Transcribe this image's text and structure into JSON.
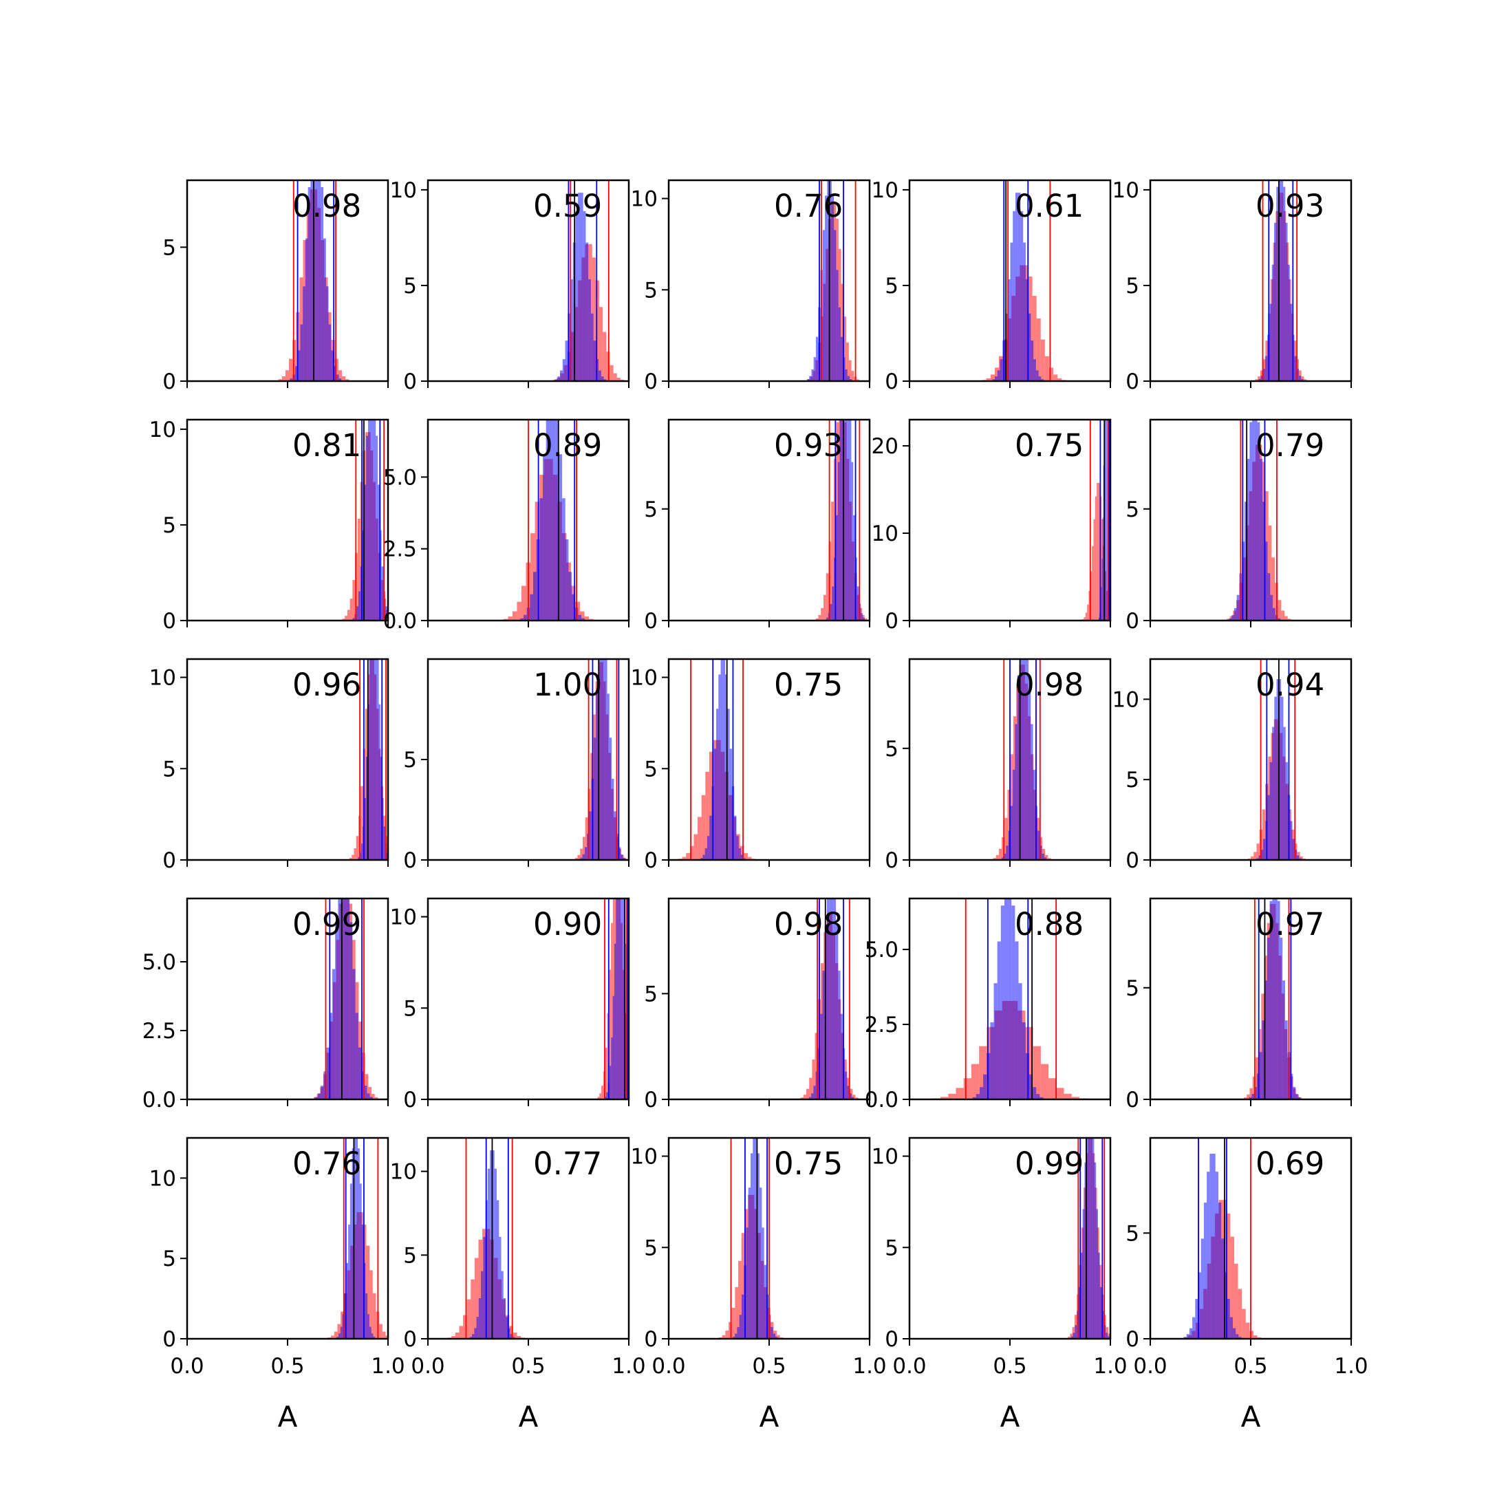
{
  "chart_data": {
    "type": "histogram-grid",
    "rows": 5,
    "cols": 5,
    "xlim": [
      0,
      1
    ],
    "xticks": [
      "0.0",
      "0.5",
      "1.0"
    ],
    "xlabel": "A",
    "colors": {
      "series_a": "#ff0000",
      "series_b": "#0000ff",
      "marker_line": "#000000",
      "axes": "#000000"
    },
    "panels": [
      {
        "label": "0.98",
        "ymax": 7.5,
        "yticks": [
          "0",
          "5"
        ],
        "a": {
          "mean": 0.63,
          "sd": 0.055
        },
        "b": {
          "mean": 0.64,
          "sd": 0.04
        },
        "a_lines": [
          0.53,
          0.74
        ],
        "b_lines": [
          0.55,
          0.73
        ],
        "marker": 0.63
      },
      {
        "label": "0.59",
        "ymax": 10.5,
        "yticks": [
          "0",
          "5",
          "10"
        ],
        "a": {
          "mean": 0.8,
          "sd": 0.055
        },
        "b": {
          "mean": 0.76,
          "sd": 0.04
        },
        "a_lines": [
          0.71,
          0.9
        ],
        "b_lines": [
          0.7,
          0.84
        ],
        "marker": 0.73
      },
      {
        "label": "0.76",
        "ymax": 11,
        "yticks": [
          "0",
          "5",
          "10"
        ],
        "a": {
          "mean": 0.82,
          "sd": 0.04
        },
        "b": {
          "mean": 0.8,
          "sd": 0.035
        },
        "a_lines": [
          0.76,
          0.93
        ],
        "b_lines": [
          0.75,
          0.87
        ],
        "marker": 0.8
      },
      {
        "label": "0.61",
        "ymax": 10.5,
        "yticks": [
          "0",
          "5",
          "10"
        ],
        "a": {
          "mean": 0.57,
          "sd": 0.065
        },
        "b": {
          "mean": 0.54,
          "sd": 0.04
        },
        "a_lines": [
          0.49,
          0.7
        ],
        "b_lines": [
          0.47,
          0.59
        ],
        "marker": 0.48
      },
      {
        "label": "0.93",
        "ymax": 10.5,
        "yticks": [
          "0",
          "5",
          "10"
        ],
        "a": {
          "mean": 0.65,
          "sd": 0.04
        },
        "b": {
          "mean": 0.65,
          "sd": 0.035
        },
        "a_lines": [
          0.56,
          0.73
        ],
        "b_lines": [
          0.59,
          0.71
        ],
        "marker": 0.64
      },
      {
        "label": "0.81",
        "ymax": 10.5,
        "yticks": [
          "0",
          "5",
          "10"
        ],
        "a": {
          "mean": 0.9,
          "sd": 0.04
        },
        "b": {
          "mean": 0.92,
          "sd": 0.03
        },
        "a_lines": [
          0.84,
          0.98
        ],
        "b_lines": [
          0.87,
          0.96
        ],
        "marker": 0.88
      },
      {
        "label": "0.89",
        "ymax": 7,
        "yticks": [
          "0.0",
          "2.5",
          "5.0"
        ],
        "a": {
          "mean": 0.6,
          "sd": 0.07
        },
        "b": {
          "mean": 0.62,
          "sd": 0.05
        },
        "a_lines": [
          0.5,
          0.74
        ],
        "b_lines": [
          0.55,
          0.73
        ],
        "marker": 0.65
      },
      {
        "label": "0.93",
        "ymax": 9,
        "yticks": [
          "0",
          "5"
        ],
        "a": {
          "mean": 0.86,
          "sd": 0.04
        },
        "b": {
          "mean": 0.88,
          "sd": 0.03
        },
        "a_lines": [
          0.8,
          0.95
        ],
        "b_lines": [
          0.83,
          0.93
        ],
        "marker": 0.87
      },
      {
        "label": "0.75",
        "ymax": 23,
        "yticks": [
          "0",
          "10",
          "20"
        ],
        "a": {
          "mean": 0.94,
          "sd": 0.025
        },
        "b": {
          "mean": 0.98,
          "sd": 0.012
        },
        "a_lines": [
          0.9,
          0.99
        ],
        "b_lines": [
          0.95,
          0.995
        ],
        "marker": 0.97
      },
      {
        "label": "0.79",
        "ymax": 9,
        "yticks": [
          "0",
          "5"
        ],
        "a": {
          "mean": 0.54,
          "sd": 0.05
        },
        "b": {
          "mean": 0.52,
          "sd": 0.04
        },
        "a_lines": [
          0.45,
          0.63
        ],
        "b_lines": [
          0.46,
          0.57
        ],
        "marker": 0.48
      },
      {
        "label": "0.96",
        "ymax": 11,
        "yticks": [
          "0",
          "5",
          "10"
        ],
        "a": {
          "mean": 0.92,
          "sd": 0.035
        },
        "b": {
          "mean": 0.93,
          "sd": 0.025
        },
        "a_lines": [
          0.86,
          0.99
        ],
        "b_lines": [
          0.88,
          0.97
        ],
        "marker": 0.9
      },
      {
        "label": "1.00",
        "ymax": 10,
        "yticks": [
          "0",
          "5"
        ],
        "a": {
          "mean": 0.86,
          "sd": 0.04
        },
        "b": {
          "mean": 0.87,
          "sd": 0.035
        },
        "a_lines": [
          0.8,
          0.94
        ],
        "b_lines": [
          0.82,
          0.95
        ],
        "marker": 0.85
      },
      {
        "label": "0.75",
        "ymax": 11,
        "yticks": [
          "0",
          "5",
          "10"
        ],
        "a": {
          "mean": 0.24,
          "sd": 0.06
        },
        "b": {
          "mean": 0.27,
          "sd": 0.035
        },
        "a_lines": [
          0.11,
          0.37
        ],
        "b_lines": [
          0.22,
          0.32
        ],
        "marker": 0.29
      },
      {
        "label": "0.98",
        "ymax": 9,
        "yticks": [
          "0",
          "5"
        ],
        "a": {
          "mean": 0.56,
          "sd": 0.045
        },
        "b": {
          "mean": 0.57,
          "sd": 0.035
        },
        "a_lines": [
          0.47,
          0.65
        ],
        "b_lines": [
          0.5,
          0.63
        ],
        "marker": 0.55
      },
      {
        "label": "0.94",
        "ymax": 12.5,
        "yticks": [
          "0",
          "5",
          "10"
        ],
        "a": {
          "mean": 0.63,
          "sd": 0.045
        },
        "b": {
          "mean": 0.64,
          "sd": 0.035
        },
        "a_lines": [
          0.55,
          0.72
        ],
        "b_lines": [
          0.58,
          0.69
        ],
        "marker": 0.64
      },
      {
        "label": "0.99",
        "ymax": 7.3,
        "yticks": [
          "0.0",
          "2.5",
          "5.0"
        ],
        "a": {
          "mean": 0.79,
          "sd": 0.05
        },
        "b": {
          "mean": 0.78,
          "sd": 0.045
        },
        "a_lines": [
          0.69,
          0.88
        ],
        "b_lines": [
          0.71,
          0.87
        ],
        "marker": 0.77
      },
      {
        "label": "0.90",
        "ymax": 11,
        "yticks": [
          "0",
          "5",
          "10"
        ],
        "a": {
          "mean": 0.94,
          "sd": 0.03
        },
        "b": {
          "mean": 0.96,
          "sd": 0.025
        },
        "a_lines": [
          0.88,
          0.99
        ],
        "b_lines": [
          0.9,
          0.995
        ],
        "marker": 0.98
      },
      {
        "label": "0.98",
        "ymax": 9.5,
        "yticks": [
          "0",
          "5"
        ],
        "a": {
          "mean": 0.8,
          "sd": 0.045
        },
        "b": {
          "mean": 0.81,
          "sd": 0.035
        },
        "a_lines": [
          0.74,
          0.9
        ],
        "b_lines": [
          0.75,
          0.87
        ],
        "marker": 0.78
      },
      {
        "label": "0.88",
        "ymax": 6.7,
        "yticks": [
          "0.0",
          "2.5",
          "5.0"
        ],
        "a": {
          "mean": 0.5,
          "sd": 0.12
        },
        "b": {
          "mean": 0.49,
          "sd": 0.055
        },
        "a_lines": [
          0.28,
          0.73
        ],
        "b_lines": [
          0.39,
          0.59
        ],
        "marker": 0.61
      },
      {
        "label": "0.97",
        "ymax": 9,
        "yticks": [
          "0",
          "5"
        ],
        "a": {
          "mean": 0.61,
          "sd": 0.045
        },
        "b": {
          "mean": 0.62,
          "sd": 0.04
        },
        "a_lines": [
          0.52,
          0.69
        ],
        "b_lines": [
          0.54,
          0.7
        ],
        "marker": 0.57
      },
      {
        "label": "0.76",
        "ymax": 12.5,
        "yticks": [
          "0",
          "5",
          "10"
        ],
        "a": {
          "mean": 0.86,
          "sd": 0.05
        },
        "b": {
          "mean": 0.84,
          "sd": 0.03
        },
        "a_lines": [
          0.78,
          0.95
        ],
        "b_lines": [
          0.79,
          0.88
        ],
        "marker": 0.83
      },
      {
        "label": "0.77",
        "ymax": 12,
        "yticks": [
          "0",
          "5",
          "10"
        ],
        "a": {
          "mean": 0.29,
          "sd": 0.06
        },
        "b": {
          "mean": 0.32,
          "sd": 0.035
        },
        "a_lines": [
          0.19,
          0.42
        ],
        "b_lines": [
          0.29,
          0.4
        ],
        "marker": 0.32
      },
      {
        "label": "0.75",
        "ymax": 11,
        "yticks": [
          "0",
          "5",
          "10"
        ],
        "a": {
          "mean": 0.41,
          "sd": 0.05
        },
        "b": {
          "mean": 0.43,
          "sd": 0.035
        },
        "a_lines": [
          0.31,
          0.5
        ],
        "b_lines": [
          0.38,
          0.49
        ],
        "marker": 0.44
      },
      {
        "label": "0.99",
        "ymax": 11,
        "yticks": [
          "0",
          "5",
          "10"
        ],
        "a": {
          "mean": 0.9,
          "sd": 0.035
        },
        "b": {
          "mean": 0.9,
          "sd": 0.03
        },
        "a_lines": [
          0.84,
          0.97
        ],
        "b_lines": [
          0.85,
          0.96
        ],
        "marker": 0.88
      },
      {
        "label": "0.69",
        "ymax": 9.5,
        "yticks": [
          "0",
          "5"
        ],
        "a": {
          "mean": 0.36,
          "sd": 0.06
        },
        "b": {
          "mean": 0.31,
          "sd": 0.045
        },
        "a_lines": [
          0.24,
          0.5
        ],
        "b_lines": [
          0.24,
          0.38
        ],
        "marker": 0.37
      }
    ]
  }
}
